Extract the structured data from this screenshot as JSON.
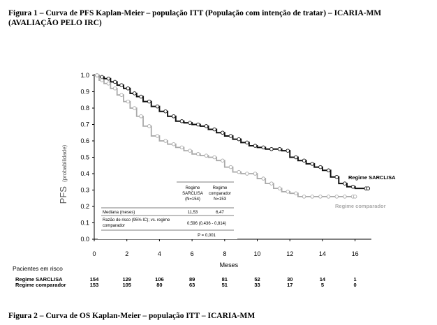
{
  "captions": {
    "figure1": "Figura 1 – Curva de PFS Kaplan-Meier – população ITT (População com intenção de tratar) – ICARIA-MM (AVALIAÇÃO PELO IRC)",
    "figure2": "Figura 2 – Curva de OS Kaplan-Meier – população ITT – ICARIA-MM"
  },
  "chart_data": {
    "type": "line",
    "step": true,
    "xlabel": "Meses",
    "ylabel_main": "PFS",
    "ylabel_sub": "(probabilidade)",
    "xlim": [
      0,
      17
    ],
    "ylim": [
      0,
      1
    ],
    "xticks": [
      0,
      2,
      4,
      6,
      8,
      10,
      12,
      14,
      16
    ],
    "yticks": [
      "0.0",
      "0.1",
      "0.2",
      "0.3",
      "0.4",
      "0.5",
      "0.6",
      "0.7",
      "0.8",
      "0.9",
      "1.0"
    ],
    "series": [
      {
        "name": "Regime SARCLISA",
        "color": "#111111",
        "x": [
          0,
          0.3,
          0.6,
          1.0,
          1.4,
          1.8,
          2.2,
          2.6,
          3.0,
          3.5,
          4.0,
          4.5,
          5.0,
          5.5,
          6.0,
          6.5,
          7.0,
          7.5,
          8.0,
          8.5,
          9.0,
          9.5,
          10.0,
          10.5,
          11.0,
          11.5,
          12.0,
          12.5,
          13.0,
          13.5,
          14.0,
          14.5,
          15.0,
          15.5,
          16.0,
          16.8
        ],
        "y": [
          1.0,
          0.99,
          0.98,
          0.96,
          0.94,
          0.92,
          0.89,
          0.87,
          0.84,
          0.81,
          0.78,
          0.75,
          0.72,
          0.71,
          0.7,
          0.69,
          0.67,
          0.65,
          0.63,
          0.61,
          0.59,
          0.57,
          0.56,
          0.55,
          0.55,
          0.54,
          0.5,
          0.48,
          0.46,
          0.44,
          0.42,
          0.38,
          0.34,
          0.32,
          0.31,
          0.31
        ]
      },
      {
        "name": "Regime comparador",
        "color": "#aaaaaa",
        "x": [
          0,
          0.3,
          0.6,
          1.0,
          1.4,
          1.8,
          2.2,
          2.6,
          3.0,
          3.5,
          4.0,
          4.5,
          5.0,
          5.5,
          6.0,
          6.5,
          7.0,
          7.5,
          8.0,
          8.5,
          9.0,
          9.5,
          10.0,
          10.5,
          11.0,
          11.5,
          12.0,
          12.5,
          13.0,
          13.5,
          14.0,
          14.5,
          15.0,
          15.5,
          16.0
        ],
        "y": [
          1.0,
          0.97,
          0.95,
          0.92,
          0.88,
          0.84,
          0.8,
          0.75,
          0.69,
          0.63,
          0.6,
          0.58,
          0.56,
          0.54,
          0.52,
          0.51,
          0.5,
          0.48,
          0.44,
          0.41,
          0.4,
          0.4,
          0.37,
          0.34,
          0.31,
          0.29,
          0.28,
          0.26,
          0.26,
          0.26,
          0.26,
          0.26,
          0.26,
          0.26,
          0.26
        ]
      }
    ],
    "series_labels": [
      "Regime SARCLISA",
      "Regime comparador"
    ],
    "stats_table": {
      "col_headers": [
        "Regime\nSARCLISA\n(N=154)",
        "Regime\ncomparador\nN=153"
      ],
      "rows": [
        {
          "label": "Mediana (meses)",
          "values": [
            "11,53",
            "6,47"
          ]
        },
        {
          "label": "Razão de risco (95% IC); vs. regime\ncomparador",
          "value": "0,596 (0,436 - 0,814)"
        },
        {
          "label": "",
          "value": "P = 0,001"
        }
      ]
    },
    "at_risk": {
      "title": "Pacientes em risco",
      "rows": [
        {
          "label": "Regime SARCLISA",
          "values": [
            "154",
            "129",
            "106",
            "89",
            "81",
            "52",
            "30",
            "14",
            "1"
          ]
        },
        {
          "label": "Regime comparador",
          "values": [
            "153",
            "105",
            "80",
            "63",
            "51",
            "33",
            "17",
            "5",
            "0"
          ]
        }
      ]
    }
  }
}
